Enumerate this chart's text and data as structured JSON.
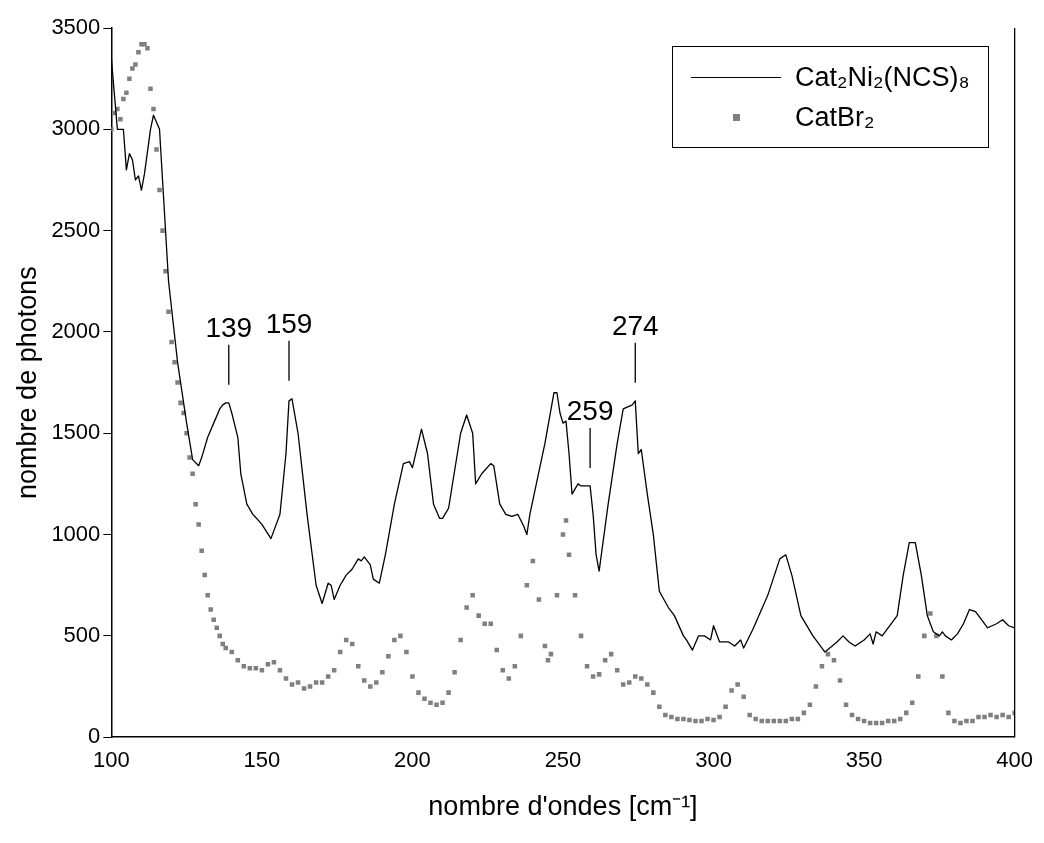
{
  "chart_data": {
    "type": "line",
    "xlabel": "nombre d'ondes [cm⁻¹]",
    "ylabel": "nombre de photons",
    "xlim": [
      100,
      400
    ],
    "xticks": [
      100,
      150,
      200,
      250,
      300,
      350,
      400
    ],
    "ylim": [
      0,
      3500
    ],
    "yticks": [
      0,
      500,
      1000,
      1500,
      2000,
      2500,
      3000,
      3500
    ],
    "grid": false,
    "legend": "top right",
    "annotations": [
      {
        "text": "139",
        "x": 139,
        "y": 1650
      },
      {
        "text": "159",
        "x": 159,
        "y": 1670
      },
      {
        "text": "259",
        "x": 259,
        "y": 1240
      },
      {
        "text": "274",
        "x": 274,
        "y": 1660
      }
    ],
    "series": [
      {
        "name": "Cat₂Ni₂(NCS)₈",
        "color": "#000000",
        "line_style": "solid",
        "marker": "none",
        "x": [
          100,
          102,
          104,
          105,
          106,
          107,
          108,
          109,
          110,
          111,
          113,
          114,
          116,
          117,
          119,
          122,
          125,
          127,
          129,
          130,
          132,
          134,
          136,
          137,
          138,
          139,
          140,
          141,
          142,
          143,
          145,
          147,
          150,
          153,
          156,
          158,
          159,
          160,
          162,
          165,
          168,
          170,
          172,
          173,
          174,
          176,
          178,
          180,
          182,
          183,
          184,
          186,
          187,
          189,
          191,
          194,
          197,
          199,
          200,
          203,
          205,
          207,
          209,
          210,
          212,
          216,
          218,
          220,
          221,
          223,
          226,
          227,
          229,
          231,
          233,
          235,
          237,
          238,
          239,
          244,
          247,
          248,
          249,
          250,
          251,
          252,
          253,
          255,
          256,
          258,
          259,
          260,
          261,
          262,
          265,
          268,
          270,
          273,
          274,
          275,
          276,
          278,
          280,
          282,
          285,
          287,
          290,
          291,
          293,
          295,
          297,
          299,
          300,
          302,
          305,
          307,
          309,
          310,
          313,
          318,
          322,
          324,
          326,
          329,
          333,
          337,
          341,
          343,
          345,
          347,
          350,
          352,
          353,
          354,
          356,
          361,
          363,
          365,
          367,
          369,
          371,
          372,
          373,
          375,
          376,
          377,
          379,
          381,
          383,
          385,
          387,
          389,
          391,
          394,
          396,
          398,
          400
        ],
        "values": [
          3350,
          3000,
          3000,
          2800,
          2880,
          2850,
          2750,
          2770,
          2700,
          2780,
          3000,
          3070,
          3000,
          2750,
          2250,
          1850,
          1550,
          1370,
          1340,
          1380,
          1480,
          1550,
          1620,
          1640,
          1650,
          1650,
          1600,
          1540,
          1480,
          1300,
          1150,
          1100,
          1050,
          980,
          1100,
          1400,
          1660,
          1670,
          1500,
          1100,
          750,
          660,
          760,
          750,
          680,
          750,
          800,
          830,
          880,
          870,
          890,
          850,
          780,
          760,
          900,
          1150,
          1350,
          1360,
          1330,
          1520,
          1400,
          1150,
          1080,
          1080,
          1130,
          1500,
          1590,
          1500,
          1250,
          1300,
          1350,
          1340,
          1150,
          1100,
          1090,
          1100,
          1040,
          1000,
          1100,
          1450,
          1700,
          1700,
          1600,
          1550,
          1560,
          1400,
          1200,
          1250,
          1240,
          1240,
          1240,
          1100,
          900,
          820,
          1150,
          1450,
          1620,
          1640,
          1660,
          1400,
          1420,
          1200,
          1000,
          720,
          640,
          600,
          500,
          480,
          430,
          500,
          500,
          480,
          550,
          470,
          470,
          450,
          480,
          440,
          530,
          700,
          880,
          900,
          800,
          600,
          500,
          420,
          470,
          500,
          470,
          450,
          480,
          510,
          460,
          520,
          500,
          600,
          800,
          960,
          960,
          800,
          600,
          560,
          520,
          500,
          520,
          500,
          480,
          510,
          560,
          630,
          620,
          580,
          540,
          560,
          580,
          550,
          540
        ]
      },
      {
        "name": "CatBr₂",
        "type": "scatter",
        "color": "#808080",
        "marker": "square",
        "x": [
          100,
          101,
          102,
          103,
          104,
          105,
          106,
          107,
          108,
          109,
          110,
          111,
          112,
          113,
          114,
          115,
          116,
          117,
          118,
          119,
          120,
          121,
          122,
          123,
          124,
          125,
          126,
          127,
          128,
          129,
          130,
          131,
          132,
          133,
          134,
          135,
          136,
          137,
          138,
          140,
          142,
          144,
          146,
          148,
          150,
          152,
          154,
          156,
          158,
          160,
          162,
          164,
          166,
          168,
          170,
          172,
          174,
          176,
          178,
          180,
          182,
          184,
          186,
          188,
          190,
          192,
          194,
          196,
          198,
          200,
          202,
          204,
          206,
          208,
          210,
          212,
          214,
          216,
          218,
          220,
          222,
          224,
          226,
          228,
          230,
          232,
          234,
          236,
          238,
          240,
          242,
          244,
          245,
          246,
          248,
          250,
          251,
          252,
          254,
          256,
          258,
          260,
          262,
          264,
          266,
          268,
          270,
          272,
          274,
          276,
          278,
          280,
          282,
          284,
          286,
          288,
          290,
          292,
          294,
          296,
          298,
          300,
          302,
          304,
          306,
          308,
          310,
          312,
          314,
          316,
          318,
          320,
          322,
          324,
          326,
          328,
          330,
          332,
          334,
          336,
          338,
          340,
          342,
          344,
          346,
          348,
          350,
          352,
          354,
          356,
          358,
          360,
          362,
          364,
          366,
          368,
          370,
          372,
          374,
          376,
          378,
          380,
          382,
          384,
          386,
          388,
          390,
          392,
          394,
          396,
          398,
          400
        ],
        "values": [
          3000,
          3080,
          3100,
          3050,
          3150,
          3180,
          3250,
          3300,
          3320,
          3380,
          3420,
          3420,
          3400,
          3200,
          3100,
          2900,
          2700,
          2500,
          2300,
          2100,
          1950,
          1850,
          1750,
          1650,
          1600,
          1500,
          1380,
          1300,
          1150,
          1050,
          920,
          800,
          700,
          630,
          580,
          540,
          500,
          460,
          440,
          420,
          380,
          350,
          340,
          340,
          330,
          360,
          370,
          330,
          290,
          260,
          270,
          240,
          250,
          270,
          270,
          300,
          330,
          420,
          480,
          460,
          350,
          280,
          250,
          270,
          320,
          400,
          480,
          500,
          420,
          300,
          220,
          190,
          170,
          160,
          170,
          220,
          320,
          480,
          640,
          700,
          600,
          560,
          560,
          430,
          330,
          290,
          350,
          500,
          750,
          870,
          680,
          450,
          380,
          410,
          700,
          1000,
          1070,
          900,
          700,
          500,
          350,
          300,
          310,
          380,
          410,
          330,
          260,
          270,
          300,
          290,
          260,
          220,
          150,
          110,
          100,
          90,
          90,
          85,
          80,
          80,
          90,
          85,
          100,
          150,
          230,
          260,
          200,
          110,
          90,
          80,
          80,
          80,
          80,
          80,
          90,
          90,
          120,
          160,
          250,
          350,
          410,
          380,
          280,
          160,
          110,
          90,
          80,
          70,
          70,
          70,
          80,
          80,
          90,
          120,
          170,
          300,
          500,
          610,
          500,
          300,
          120,
          80,
          70,
          80,
          80,
          100,
          100,
          110,
          100,
          110,
          100,
          120
        ]
      }
    ]
  }
}
